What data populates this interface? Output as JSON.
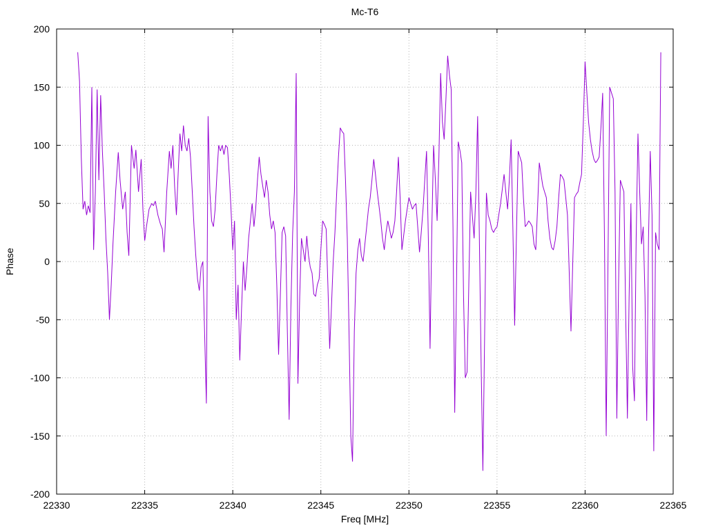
{
  "page": {
    "background": "#ffffff"
  },
  "chart_data": {
    "type": "line",
    "title": "Mc-T6",
    "xlabel": "Freq [MHz]",
    "ylabel": "Phase",
    "xlim": [
      22330,
      22365
    ],
    "ylim": [
      -200,
      200
    ],
    "xticks": [
      22330,
      22335,
      22340,
      22345,
      22350,
      22355,
      22360,
      22365
    ],
    "yticks": [
      -200,
      -150,
      -100,
      -50,
      0,
      50,
      100,
      150,
      200
    ],
    "grid": "dotted",
    "legend": "none",
    "line_color": "#9400d3",
    "series_name": "phase",
    "points": [
      [
        22331.2,
        180
      ],
      [
        22331.3,
        155
      ],
      [
        22331.4,
        90
      ],
      [
        22331.5,
        45
      ],
      [
        22331.6,
        52
      ],
      [
        22331.7,
        40
      ],
      [
        22331.8,
        48
      ],
      [
        22331.9,
        42
      ],
      [
        22332.0,
        150
      ],
      [
        22332.1,
        10
      ],
      [
        22332.2,
        60
      ],
      [
        22332.3,
        148
      ],
      [
        22332.4,
        70
      ],
      [
        22332.5,
        143
      ],
      [
        22332.6,
        95
      ],
      [
        22332.7,
        60
      ],
      [
        22332.8,
        20
      ],
      [
        22332.9,
        -10
      ],
      [
        22333.0,
        -50
      ],
      [
        22333.1,
        -20
      ],
      [
        22333.2,
        15
      ],
      [
        22333.35,
        60
      ],
      [
        22333.5,
        94
      ],
      [
        22333.6,
        70
      ],
      [
        22333.75,
        45
      ],
      [
        22333.9,
        60
      ],
      [
        22334.0,
        25
      ],
      [
        22334.1,
        5
      ],
      [
        22334.25,
        100
      ],
      [
        22334.4,
        80
      ],
      [
        22334.5,
        96
      ],
      [
        22334.65,
        60
      ],
      [
        22334.8,
        88
      ],
      [
        22334.9,
        45
      ],
      [
        22335.0,
        18
      ],
      [
        22335.1,
        30
      ],
      [
        22335.25,
        45
      ],
      [
        22335.4,
        50
      ],
      [
        22335.5,
        48
      ],
      [
        22335.6,
        52
      ],
      [
        22335.75,
        40
      ],
      [
        22335.9,
        32
      ],
      [
        22336.0,
        28
      ],
      [
        22336.1,
        8
      ],
      [
        22336.25,
        60
      ],
      [
        22336.4,
        95
      ],
      [
        22336.5,
        80
      ],
      [
        22336.6,
        100
      ],
      [
        22336.7,
        65
      ],
      [
        22336.8,
        40
      ],
      [
        22336.9,
        75
      ],
      [
        22337.0,
        110
      ],
      [
        22337.1,
        95
      ],
      [
        22337.2,
        117
      ],
      [
        22337.3,
        100
      ],
      [
        22337.4,
        95
      ],
      [
        22337.5,
        106
      ],
      [
        22337.6,
        90
      ],
      [
        22337.7,
        60
      ],
      [
        22337.8,
        30
      ],
      [
        22337.9,
        5
      ],
      [
        22338.0,
        -15
      ],
      [
        22338.1,
        -25
      ],
      [
        22338.2,
        -5
      ],
      [
        22338.3,
        0
      ],
      [
        22338.4,
        -60
      ],
      [
        22338.5,
        -122
      ],
      [
        22338.6,
        125
      ],
      [
        22338.7,
        60
      ],
      [
        22338.8,
        35
      ],
      [
        22338.9,
        30
      ],
      [
        22339.0,
        45
      ],
      [
        22339.1,
        75
      ],
      [
        22339.2,
        100
      ],
      [
        22339.3,
        95
      ],
      [
        22339.4,
        100
      ],
      [
        22339.5,
        92
      ],
      [
        22339.6,
        100
      ],
      [
        22339.7,
        98
      ],
      [
        22339.8,
        75
      ],
      [
        22339.9,
        45
      ],
      [
        22340.0,
        10
      ],
      [
        22340.1,
        35
      ],
      [
        22340.2,
        -50
      ],
      [
        22340.3,
        -20
      ],
      [
        22340.4,
        -85
      ],
      [
        22340.5,
        -40
      ],
      [
        22340.6,
        0
      ],
      [
        22340.7,
        -25
      ],
      [
        22340.8,
        -5
      ],
      [
        22340.9,
        20
      ],
      [
        22341.0,
        35
      ],
      [
        22341.1,
        50
      ],
      [
        22341.2,
        30
      ],
      [
        22341.3,
        45
      ],
      [
        22341.4,
        70
      ],
      [
        22341.5,
        90
      ],
      [
        22341.6,
        75
      ],
      [
        22341.7,
        65
      ],
      [
        22341.8,
        55
      ],
      [
        22341.9,
        70
      ],
      [
        22342.0,
        60
      ],
      [
        22342.1,
        40
      ],
      [
        22342.2,
        28
      ],
      [
        22342.3,
        35
      ],
      [
        22342.4,
        25
      ],
      [
        22342.5,
        -20
      ],
      [
        22342.6,
        -80
      ],
      [
        22342.7,
        -30
      ],
      [
        22342.8,
        25
      ],
      [
        22342.9,
        30
      ],
      [
        22343.0,
        22
      ],
      [
        22343.1,
        -60
      ],
      [
        22343.2,
        -136
      ],
      [
        22343.3,
        -40
      ],
      [
        22343.4,
        25
      ],
      [
        22343.5,
        60
      ],
      [
        22343.6,
        162
      ],
      [
        22343.7,
        -105
      ],
      [
        22343.8,
        -30
      ],
      [
        22343.9,
        20
      ],
      [
        22344.0,
        10
      ],
      [
        22344.1,
        0
      ],
      [
        22344.2,
        22
      ],
      [
        22344.3,
        5
      ],
      [
        22344.4,
        -5
      ],
      [
        22344.5,
        -10
      ],
      [
        22344.6,
        -28
      ],
      [
        22344.7,
        -30
      ],
      [
        22344.8,
        -20
      ],
      [
        22344.9,
        -15
      ],
      [
        22345.0,
        10
      ],
      [
        22345.1,
        35
      ],
      [
        22345.2,
        32
      ],
      [
        22345.3,
        28
      ],
      [
        22345.4,
        -20
      ],
      [
        22345.5,
        -75
      ],
      [
        22345.6,
        -40
      ],
      [
        22345.7,
        0
      ],
      [
        22345.8,
        25
      ],
      [
        22345.9,
        60
      ],
      [
        22346.0,
        90
      ],
      [
        22346.1,
        115
      ],
      [
        22346.2,
        112
      ],
      [
        22346.3,
        110
      ],
      [
        22346.4,
        70
      ],
      [
        22346.5,
        20
      ],
      [
        22346.6,
        -60
      ],
      [
        22346.7,
        -150
      ],
      [
        22346.8,
        -172
      ],
      [
        22346.9,
        -60
      ],
      [
        22347.0,
        -10
      ],
      [
        22347.1,
        10
      ],
      [
        22347.2,
        20
      ],
      [
        22347.3,
        5
      ],
      [
        22347.4,
        0
      ],
      [
        22347.5,
        15
      ],
      [
        22347.6,
        30
      ],
      [
        22347.7,
        45
      ],
      [
        22347.8,
        55
      ],
      [
        22347.9,
        70
      ],
      [
        22348.0,
        88
      ],
      [
        22348.1,
        75
      ],
      [
        22348.2,
        60
      ],
      [
        22348.3,
        48
      ],
      [
        22348.4,
        35
      ],
      [
        22348.5,
        20
      ],
      [
        22348.6,
        10
      ],
      [
        22348.7,
        25
      ],
      [
        22348.8,
        35
      ],
      [
        22348.9,
        28
      ],
      [
        22349.0,
        20
      ],
      [
        22349.1,
        25
      ],
      [
        22349.2,
        35
      ],
      [
        22349.3,
        60
      ],
      [
        22349.4,
        90
      ],
      [
        22349.5,
        55
      ],
      [
        22349.6,
        10
      ],
      [
        22349.7,
        22
      ],
      [
        22349.8,
        35
      ],
      [
        22349.9,
        45
      ],
      [
        22350.0,
        55
      ],
      [
        22350.1,
        50
      ],
      [
        22350.2,
        45
      ],
      [
        22350.3,
        48
      ],
      [
        22350.4,
        50
      ],
      [
        22350.5,
        30
      ],
      [
        22350.6,
        8
      ],
      [
        22350.7,
        25
      ],
      [
        22350.8,
        45
      ],
      [
        22350.9,
        70
      ],
      [
        22351.0,
        95
      ],
      [
        22351.1,
        20
      ],
      [
        22351.2,
        -75
      ],
      [
        22351.3,
        30
      ],
      [
        22351.4,
        100
      ],
      [
        22351.5,
        70
      ],
      [
        22351.6,
        35
      ],
      [
        22351.7,
        90
      ],
      [
        22351.8,
        162
      ],
      [
        22351.9,
        120
      ],
      [
        22352.0,
        105
      ],
      [
        22352.1,
        140
      ],
      [
        22352.2,
        177
      ],
      [
        22352.3,
        160
      ],
      [
        22352.4,
        148
      ],
      [
        22352.5,
        30
      ],
      [
        22352.6,
        -130
      ],
      [
        22352.7,
        -20
      ],
      [
        22352.8,
        103
      ],
      [
        22352.9,
        95
      ],
      [
        22353.0,
        85
      ],
      [
        22353.1,
        -30
      ],
      [
        22353.2,
        -100
      ],
      [
        22353.3,
        -95
      ],
      [
        22353.4,
        -20
      ],
      [
        22353.5,
        60
      ],
      [
        22353.6,
        40
      ],
      [
        22353.7,
        20
      ],
      [
        22353.8,
        58
      ],
      [
        22353.9,
        125
      ],
      [
        22354.0,
        20
      ],
      [
        22354.1,
        -90
      ],
      [
        22354.2,
        -180
      ],
      [
        22354.3,
        -60
      ],
      [
        22354.4,
        59
      ],
      [
        22354.5,
        40
      ],
      [
        22354.6,
        35
      ],
      [
        22354.7,
        28
      ],
      [
        22354.8,
        25
      ],
      [
        22354.9,
        28
      ],
      [
        22355.0,
        30
      ],
      [
        22355.1,
        40
      ],
      [
        22355.2,
        50
      ],
      [
        22355.3,
        62
      ],
      [
        22355.4,
        75
      ],
      [
        22355.5,
        60
      ],
      [
        22355.6,
        45
      ],
      [
        22355.7,
        70
      ],
      [
        22355.8,
        105
      ],
      [
        22355.9,
        30
      ],
      [
        22356.0,
        -55
      ],
      [
        22356.1,
        20
      ],
      [
        22356.2,
        95
      ],
      [
        22356.3,
        90
      ],
      [
        22356.4,
        85
      ],
      [
        22356.5,
        55
      ],
      [
        22356.6,
        30
      ],
      [
        22356.7,
        32
      ],
      [
        22356.8,
        35
      ],
      [
        22356.9,
        33
      ],
      [
        22357.0,
        30
      ],
      [
        22357.1,
        15
      ],
      [
        22357.2,
        10
      ],
      [
        22357.3,
        45
      ],
      [
        22357.4,
        85
      ],
      [
        22357.5,
        75
      ],
      [
        22357.6,
        65
      ],
      [
        22357.7,
        60
      ],
      [
        22357.8,
        55
      ],
      [
        22357.9,
        35
      ],
      [
        22358.0,
        20
      ],
      [
        22358.1,
        12
      ],
      [
        22358.2,
        10
      ],
      [
        22358.3,
        18
      ],
      [
        22358.4,
        30
      ],
      [
        22358.5,
        55
      ],
      [
        22358.6,
        75
      ],
      [
        22358.7,
        73
      ],
      [
        22358.8,
        70
      ],
      [
        22358.9,
        55
      ],
      [
        22359.0,
        40
      ],
      [
        22359.1,
        -10
      ],
      [
        22359.2,
        -60
      ],
      [
        22359.3,
        0
      ],
      [
        22359.4,
        55
      ],
      [
        22359.5,
        58
      ],
      [
        22359.6,
        60
      ],
      [
        22359.7,
        68
      ],
      [
        22359.8,
        75
      ],
      [
        22359.9,
        120
      ],
      [
        22360.0,
        172
      ],
      [
        22360.1,
        145
      ],
      [
        22360.2,
        120
      ],
      [
        22360.3,
        105
      ],
      [
        22360.4,
        95
      ],
      [
        22360.5,
        88
      ],
      [
        22360.6,
        85
      ],
      [
        22360.7,
        87
      ],
      [
        22360.8,
        90
      ],
      [
        22360.9,
        115
      ],
      [
        22361.0,
        145
      ],
      [
        22361.1,
        20
      ],
      [
        22361.2,
        -150
      ],
      [
        22361.3,
        0
      ],
      [
        22361.4,
        150
      ],
      [
        22361.5,
        145
      ],
      [
        22361.6,
        140
      ],
      [
        22361.7,
        60
      ],
      [
        22361.8,
        -135
      ],
      [
        22361.9,
        -20
      ],
      [
        22362.0,
        70
      ],
      [
        22362.1,
        65
      ],
      [
        22362.2,
        60
      ],
      [
        22362.3,
        -40
      ],
      [
        22362.4,
        -135
      ],
      [
        22362.5,
        -30
      ],
      [
        22362.6,
        50
      ],
      [
        22362.7,
        -90
      ],
      [
        22362.8,
        -120
      ],
      [
        22362.9,
        20
      ],
      [
        22363.0,
        110
      ],
      [
        22363.1,
        60
      ],
      [
        22363.2,
        15
      ],
      [
        22363.3,
        30
      ],
      [
        22363.4,
        -30
      ],
      [
        22363.5,
        -137
      ],
      [
        22363.6,
        20
      ],
      [
        22363.7,
        95
      ],
      [
        22363.8,
        40
      ],
      [
        22363.9,
        -163
      ],
      [
        22364.0,
        25
      ],
      [
        22364.1,
        15
      ],
      [
        22364.2,
        10
      ],
      [
        22364.3,
        180
      ]
    ]
  }
}
